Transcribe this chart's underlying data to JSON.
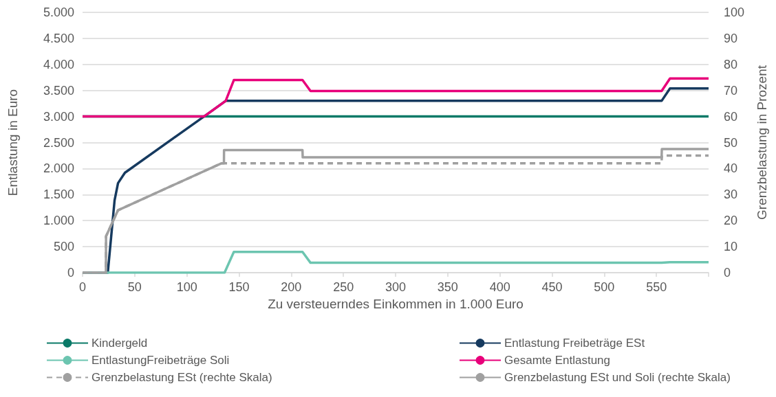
{
  "chart_data": {
    "type": "line",
    "xlabel": "Zu versteuerndes Einkommen in 1.000 Euro",
    "ylabel": "Entlastung in Euro",
    "y2label": "Grenzbelastung in Prozent",
    "xlim": [
      0,
      600
    ],
    "xticks": [
      0,
      50,
      100,
      150,
      200,
      250,
      300,
      350,
      400,
      450,
      500,
      550,
      {
        "value": 600,
        "label": null
      }
    ],
    "ylim": [
      0,
      5000
    ],
    "yticks": [
      0,
      500,
      {
        "value": 1000,
        "label": "1.000"
      },
      {
        "value": 1500,
        "label": "1.500"
      },
      {
        "value": 2000,
        "label": "2.000"
      },
      {
        "value": 2500,
        "label": "2.500"
      },
      {
        "value": 3000,
        "label": "3.000"
      },
      {
        "value": 3500,
        "label": "3.500"
      },
      {
        "value": 4000,
        "label": "4.000"
      },
      {
        "value": 4500,
        "label": "4.500"
      },
      {
        "value": 5000,
        "label": "5.000"
      }
    ],
    "y2lim": [
      0,
      100
    ],
    "y2ticks": [
      0,
      10,
      20,
      30,
      40,
      50,
      60,
      70,
      80,
      90,
      100
    ],
    "grid": "y",
    "legend": "bottom",
    "marker": "none",
    "line_style": "solid",
    "series": [
      {
        "name": "Kindergeld",
        "color": "#0b7a68",
        "x": [
          0,
          600
        ],
        "values": [
          3000,
          3000
        ]
      },
      {
        "name": "Entlastung Freibeträge ESt",
        "color": "#163a5f",
        "x": [
          0,
          24.2,
          30.7,
          34,
          40.6,
          116.4,
          137.2,
          555,
          563,
          600
        ],
        "values": [
          0,
          0,
          1390,
          1720,
          1920,
          3000,
          3300,
          3300,
          3540,
          3540
        ]
      },
      {
        "name": "EntlastungFreibeträge Soli",
        "color": "#6cc5b0",
        "x": [
          0,
          136.1,
          145,
          210.8,
          218.5,
          555,
          563,
          600
        ],
        "values": [
          0,
          0,
          400,
          400,
          190,
          190,
          200,
          200
        ]
      },
      {
        "name": "Gesamte Entlastung",
        "color": "#e8007a",
        "x": [
          0,
          116.4,
          137.2,
          145,
          210.8,
          218.5,
          555,
          563,
          600
        ],
        "values": [
          3000,
          3000,
          3300,
          3700,
          3700,
          3490,
          3490,
          3730,
          3730
        ]
      },
      {
        "name": "Grenzbelastung ESt (rechte Skala)",
        "color": "#a0a0a0",
        "axis": "y2",
        "line_style": "dashed",
        "x": [
          0,
          22.4,
          22.5,
          34,
          133,
          555,
          555.2,
          600
        ],
        "values": [
          0,
          0,
          14,
          24,
          42,
          42,
          45,
          45
        ]
      },
      {
        "name": "Grenzbelastung ESt und Soli (rechte Skala)",
        "color": "#a0a0a0",
        "axis": "y2",
        "x": [
          0,
          22.4,
          22.5,
          34,
          133,
          135.5,
          135.6,
          210.8,
          211,
          555,
          555.2,
          600
        ],
        "values": [
          0,
          0,
          14,
          24,
          42,
          42,
          47.1,
          47.1,
          44.3,
          44.3,
          47.5,
          47.5
        ]
      }
    ]
  }
}
